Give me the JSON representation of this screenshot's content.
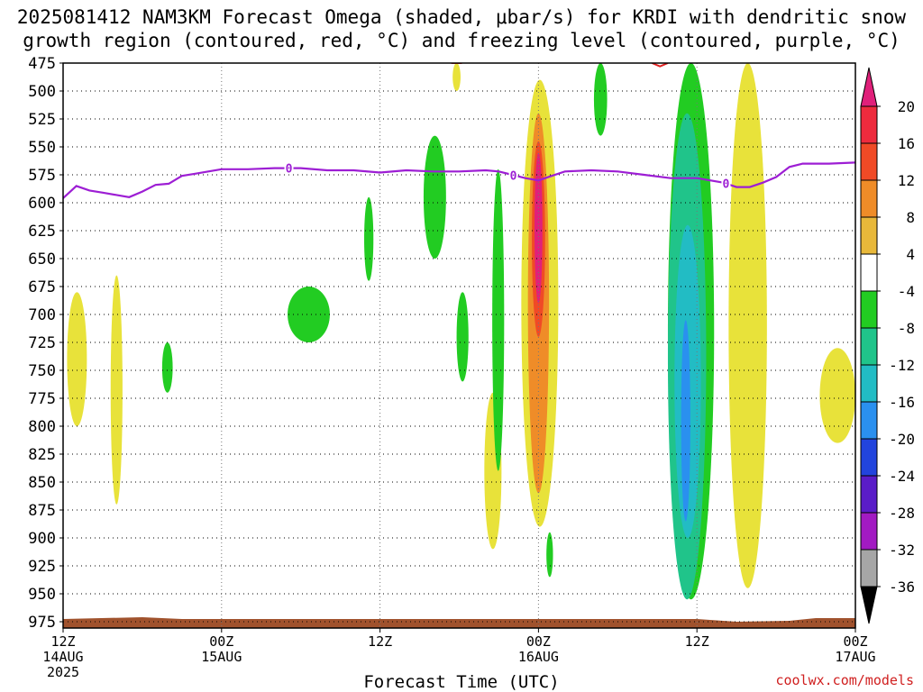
{
  "title": {
    "line1": "2025081412 NAM3KM Forecast Omega (shaded, μbar/s) for KRDI with dendritic snow",
    "line2": "growth region (contoured, red, °C) and freezing level (contoured, purple, °C)"
  },
  "xlabel": "Forecast Time (UTC)",
  "credit": "coolwx.com/models",
  "chart_data": {
    "type": "heatmap",
    "xlabel": "Forecast Time (UTC)",
    "ylabel": "",
    "x_range_hours": [
      0,
      60
    ],
    "y_axis": "pressure (mb), inverted",
    "ylim": [
      975,
      475
    ],
    "y_ticks": [
      475,
      500,
      525,
      550,
      575,
      600,
      625,
      650,
      675,
      700,
      725,
      750,
      775,
      800,
      825,
      850,
      875,
      900,
      925,
      950,
      975
    ],
    "x_ticks": [
      {
        "hour": 0,
        "line1": "12Z",
        "line2": "14AUG",
        "line3": "2025"
      },
      {
        "hour": 12,
        "line1": "00Z",
        "line2": "15AUG",
        "line3": ""
      },
      {
        "hour": 24,
        "line1": "12Z",
        "line2": "",
        "line3": ""
      },
      {
        "hour": 36,
        "line1": "00Z",
        "line2": "16AUG",
        "line3": ""
      },
      {
        "hour": 48,
        "line1": "12Z",
        "line2": "",
        "line3": ""
      },
      {
        "hour": 60,
        "line1": "00Z",
        "line2": "17AUG",
        "line3": ""
      }
    ],
    "grid": true,
    "colorbar": {
      "labels": [
        "20",
        "16",
        "12",
        "8",
        "4",
        "-4",
        "-8",
        "-12",
        "-16",
        "-20",
        "-24",
        "-28",
        "-32",
        "-36"
      ],
      "bands": [
        {
          "lo": 16,
          "hi": 20,
          "color": "#ee2b3d"
        },
        {
          "lo": 12,
          "hi": 16,
          "color": "#f04a26"
        },
        {
          "lo": 8,
          "hi": 12,
          "color": "#ef8c28"
        },
        {
          "lo": 4,
          "hi": 8,
          "color": "#e8b83a"
        },
        {
          "lo": -4,
          "hi": 4,
          "color": "#ffffff"
        },
        {
          "lo": -8,
          "hi": -4,
          "color": "#22cc22"
        },
        {
          "lo": -12,
          "hi": -8,
          "color": "#20c48a"
        },
        {
          "lo": -16,
          "hi": -12,
          "color": "#22bcc4"
        },
        {
          "lo": -20,
          "hi": -16,
          "color": "#2a90ef"
        },
        {
          "lo": -24,
          "hi": -20,
          "color": "#2244dd"
        },
        {
          "lo": -28,
          "hi": -24,
          "color": "#5a1cc8"
        },
        {
          "lo": -32,
          "hi": -28,
          "color": "#a21ac2"
        },
        {
          "lo": -36,
          "hi": -32,
          "color": "#a6a6a6"
        }
      ],
      "top_arrow_color": "#e0207a",
      "bottom_arrow_color": "#000000"
    },
    "omega_regions": [
      {
        "color": "#e8e23a",
        "x": [
          0.3,
          1.8
        ],
        "p": [
          680,
          800
        ]
      },
      {
        "color": "#e8e23a",
        "x": [
          3.6,
          4.5
        ],
        "p": [
          665,
          870
        ]
      },
      {
        "color": "#22cc22",
        "x": [
          7.5,
          8.3
        ],
        "p": [
          725,
          770
        ]
      },
      {
        "color": "#22cc22",
        "x": [
          17.0,
          20.2
        ],
        "p": [
          675,
          725
        ]
      },
      {
        "color": "#22cc22",
        "x": [
          22.8,
          23.5
        ],
        "p": [
          595,
          670
        ]
      },
      {
        "color": "#22cc22",
        "x": [
          27.3,
          29.0
        ],
        "p": [
          540,
          650
        ]
      },
      {
        "color": "#e8e23a",
        "x": [
          29.5,
          30.1
        ],
        "p": [
          475,
          500
        ]
      },
      {
        "color": "#22cc22",
        "x": [
          29.8,
          30.7
        ],
        "p": [
          680,
          760
        ]
      },
      {
        "color": "#e8e23a",
        "x": [
          31.9,
          33.2
        ],
        "p": [
          770,
          910
        ]
      },
      {
        "color": "#22cc22",
        "x": [
          32.5,
          33.4
        ],
        "p": [
          570,
          840
        ]
      },
      {
        "color": "#e8e23a",
        "x": [
          34.7,
          37.5
        ],
        "p": [
          490,
          890
        ]
      },
      {
        "color": "#ef8c28",
        "x": [
          35.2,
          36.8
        ],
        "p": [
          520,
          860
        ]
      },
      {
        "color": "#f04a26",
        "x": [
          35.5,
          36.5
        ],
        "p": [
          545,
          720
        ]
      },
      {
        "color": "#e0207a",
        "x": [
          35.7,
          36.3
        ],
        "p": [
          555,
          690
        ]
      },
      {
        "color": "#22cc22",
        "x": [
          36.6,
          37.1
        ],
        "p": [
          895,
          935
        ]
      },
      {
        "color": "#22cc22",
        "x": [
          40.2,
          41.2
        ],
        "p": [
          475,
          540
        ]
      },
      {
        "color": "#22cc22",
        "x": [
          45.8,
          49.3
        ],
        "p": [
          475,
          955
        ]
      },
      {
        "color": "#20c48a",
        "x": [
          45.8,
          48.7
        ],
        "p": [
          520,
          955
        ]
      },
      {
        "color": "#22bcc4",
        "x": [
          46.3,
          48.3
        ],
        "p": [
          620,
          900
        ]
      },
      {
        "color": "#2a90ef",
        "x": [
          46.8,
          47.5
        ],
        "p": [
          705,
          885
        ]
      },
      {
        "color": "#e8e23a",
        "x": [
          50.4,
          53.3
        ],
        "p": [
          475,
          945
        ]
      },
      {
        "color": "#e8e23a",
        "x": [
          57.3,
          60.0
        ],
        "p": [
          730,
          815
        ]
      }
    ],
    "dgz_contours": [
      {
        "x": [
          29.4,
          30.2
        ],
        "p": 475
      },
      {
        "x": [
          44.6,
          45.8
        ],
        "p": 478
      }
    ],
    "freezing_level": {
      "label": "0",
      "x": [
        0,
        1,
        2,
        3,
        4,
        5,
        6,
        7,
        8,
        9,
        10,
        11,
        12,
        14,
        16,
        18,
        20,
        22,
        24,
        26,
        28,
        30,
        32,
        33,
        34,
        35,
        36,
        37,
        38,
        40,
        42,
        44,
        46,
        48,
        50,
        51,
        52,
        53,
        54,
        55,
        56,
        58,
        60
      ],
      "p": [
        596,
        585,
        589,
        591,
        593,
        595,
        590,
        584,
        583,
        576,
        574,
        572,
        570,
        570,
        569,
        569,
        571,
        571,
        573,
        571,
        572,
        572,
        571,
        572,
        575,
        578,
        580,
        576,
        572,
        571,
        572,
        575,
        578,
        578,
        582,
        586,
        586,
        582,
        577,
        568,
        565,
        565,
        564
      ],
      "label_x": [
        17.1,
        34.1,
        50.2
      ]
    },
    "surface_color": "#a0522d"
  }
}
